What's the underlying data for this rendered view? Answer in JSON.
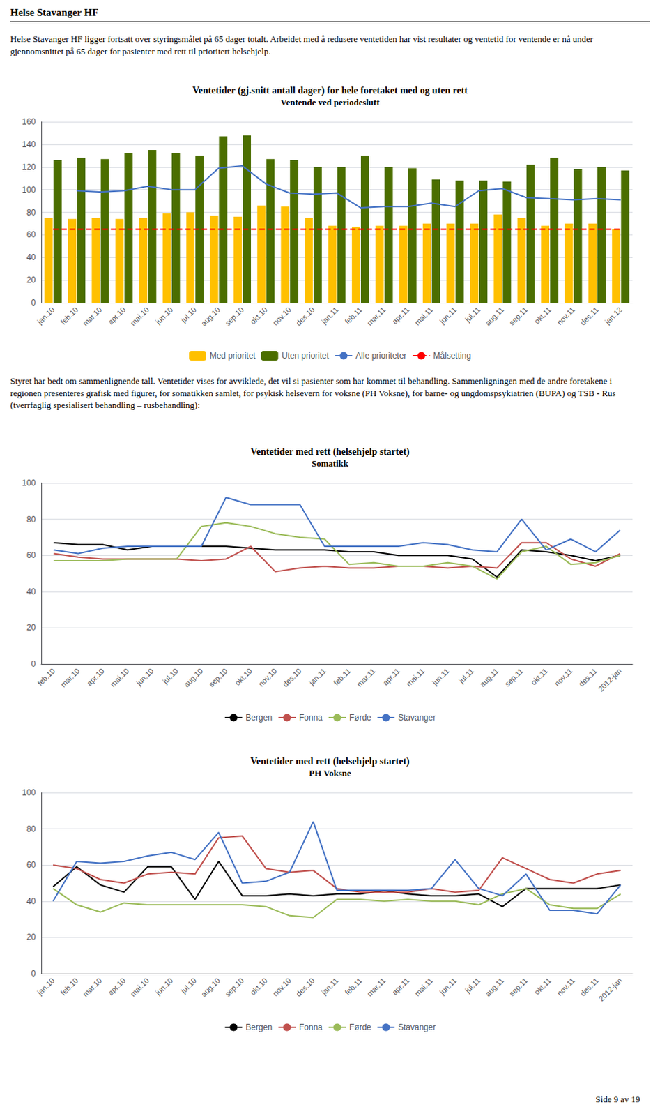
{
  "title": "Helse Stavanger HF",
  "annotations": [
    "Helse Stavanger HF ligger fortsatt over styringsmålet på 65 dager totalt. Arbeidet med å redusere ventetiden har vist resultater og ventetid for ventende er nå under gjennomsnittet på 65 dager for pasienter med rett til prioritert helsehjelp.",
    "Styret har bedt om sammenlignende tall.  Ventetider vises for avviklede, det vil si pasienter som har kommet til behandling. Sammenligningen med de andre foretakene i regionen presenteres grafisk med figurer, for somatikken samlet, for psykisk helsevern for voksne (PH Voksne), for barne- og ungdomspsykiatrien (BUPA) og TSB - Rus (tverrfaglig spesialisert behandling – rusbehandling):",
    "Side 9 av 19"
  ],
  "chart_data": [
    {
      "type": "bar",
      "title": "Ventetider (gj.snitt antall dager) for hele foretaket med og uten rett",
      "subtitle": "Ventende ved periodeslutt",
      "categories": [
        "jan.10",
        "feb.10",
        "mar.10",
        "apr.10",
        "mai.10",
        "jun.10",
        "jul.10",
        "aug.10",
        "sep.10",
        "okt.10",
        "nov.10",
        "des.10",
        "jan.11",
        "feb.11",
        "mar.11",
        "apr.11",
        "mai.11",
        "jun.11",
        "jul.11",
        "aug.11",
        "sep.11",
        "okt.11",
        "nov.11",
        "des.11",
        "jan.12"
      ],
      "series": [
        {
          "name": "Med prioritet",
          "type": "bar",
          "color": "#FFC000",
          "values": [
            75,
            74,
            75,
            74,
            75,
            79,
            80,
            77,
            76,
            86,
            85,
            75,
            68,
            67,
            68,
            68,
            70,
            70,
            70,
            78,
            75,
            68,
            70,
            70,
            65
          ]
        },
        {
          "name": "Uten prioritet",
          "type": "bar",
          "color": "#4B6E00",
          "values": [
            126,
            128,
            127,
            132,
            135,
            132,
            130,
            147,
            148,
            127,
            126,
            120,
            120,
            130,
            120,
            119,
            109,
            108,
            108,
            107,
            122,
            128,
            118,
            120,
            117
          ]
        },
        {
          "name": "Alle prioriteter",
          "type": "line",
          "color": "#4472C4",
          "values": [
            null,
            99,
            98,
            99,
            103,
            100,
            100,
            119,
            121,
            105,
            97,
            96,
            97,
            84,
            85,
            85,
            88,
            85,
            99,
            101,
            93,
            92,
            91,
            92,
            91
          ]
        },
        {
          "name": "Målsetting",
          "type": "line",
          "line_style": "dashed",
          "color": "#FF0000",
          "values": [
            65,
            65,
            65,
            65,
            65,
            65,
            65,
            65,
            65,
            65,
            65,
            65,
            65,
            65,
            65,
            65,
            65,
            65,
            65,
            65,
            65,
            65,
            65,
            65,
            65
          ]
        }
      ],
      "ylim": [
        0,
        160
      ],
      "yticks": [
        0,
        20,
        40,
        60,
        80,
        100,
        120,
        140,
        160
      ],
      "grid": true,
      "legend": "bottom"
    },
    {
      "type": "line",
      "title": "Ventetider med rett (helsehjelp startet)",
      "subtitle": "Somatikk",
      "categories": [
        "feb.10",
        "mar.10",
        "apr.10",
        "mai.10",
        "jun.10",
        "jul.10",
        "aug.10",
        "sep.10",
        "okt.10",
        "nov.10",
        "des.10",
        "jan.11",
        "feb.11",
        "mar.11",
        "apr.11",
        "mai.11",
        "jun.11",
        "jul.11",
        "aug.11",
        "sep.11",
        "okt.11",
        "nov.11",
        "des.11",
        "2012-jan"
      ],
      "series": [
        {
          "name": "Bergen",
          "color": "#000000",
          "values": [
            67,
            66,
            66,
            63,
            65,
            65,
            65,
            65,
            64,
            63,
            63,
            63,
            62,
            62,
            60,
            60,
            60,
            58,
            48,
            63,
            62,
            60,
            57,
            60
          ]
        },
        {
          "name": "Fonna",
          "color": "#C0504D",
          "values": [
            61,
            59,
            58,
            58,
            58,
            58,
            57,
            58,
            65,
            51,
            53,
            54,
            53,
            53,
            54,
            54,
            53,
            54,
            53,
            67,
            67,
            58,
            54,
            61
          ]
        },
        {
          "name": "Førde",
          "color": "#9BBB59",
          "values": [
            57,
            57,
            57,
            58,
            58,
            58,
            76,
            78,
            76,
            72,
            70,
            69,
            55,
            56,
            54,
            54,
            56,
            54,
            47,
            62,
            65,
            55,
            56,
            60
          ]
        },
        {
          "name": "Stavanger",
          "color": "#4472C4",
          "values": [
            63,
            61,
            64,
            65,
            65,
            65,
            65,
            92,
            88,
            88,
            88,
            65,
            65,
            65,
            65,
            67,
            66,
            63,
            62,
            80,
            63,
            69,
            62,
            74
          ]
        }
      ],
      "ylim": [
        0,
        100
      ],
      "yticks": [
        0,
        20,
        40,
        60,
        80,
        100
      ],
      "grid": true,
      "legend": "bottom"
    },
    {
      "type": "line",
      "title": "Ventetider med rett (helsehjelp startet)",
      "subtitle": "PH Voksne",
      "categories": [
        "jan.10",
        "feb.10",
        "mar.10",
        "apr.10",
        "mai.10",
        "jun.10",
        "jul.10",
        "aug.10",
        "sep.10",
        "okt.10",
        "nov.10",
        "des.10",
        "jan.11",
        "feb.11",
        "mar.11",
        "apr.11",
        "mai.11",
        "jun.11",
        "jul.11",
        "aug.11",
        "sep.11",
        "okt.11",
        "nov.11",
        "des.11",
        "2012-jan"
      ],
      "series": [
        {
          "name": "Bergen",
          "color": "#000000",
          "values": [
            48,
            59,
            49,
            45,
            59,
            59,
            41,
            62,
            43,
            43,
            44,
            43,
            44,
            44,
            46,
            44,
            43,
            43,
            44,
            37,
            47,
            47,
            47,
            47,
            49
          ]
        },
        {
          "name": "Fonna",
          "color": "#C0504D",
          "values": [
            60,
            58,
            52,
            50,
            55,
            56,
            55,
            75,
            76,
            58,
            56,
            57,
            47,
            45,
            45,
            45,
            47,
            45,
            46,
            64,
            58,
            52,
            50,
            55,
            57
          ]
        },
        {
          "name": "Førde",
          "color": "#9BBB59",
          "values": [
            47,
            38,
            34,
            39,
            38,
            38,
            38,
            38,
            38,
            37,
            32,
            31,
            41,
            41,
            40,
            41,
            40,
            40,
            38,
            44,
            47,
            38,
            36,
            36,
            44
          ]
        },
        {
          "name": "Stavanger",
          "color": "#4472C4",
          "values": [
            40,
            62,
            61,
            62,
            65,
            67,
            63,
            78,
            50,
            51,
            56,
            84,
            46,
            46,
            46,
            46,
            47,
            63,
            47,
            43,
            55,
            35,
            35,
            33,
            49
          ]
        }
      ],
      "ylim": [
        0,
        100
      ],
      "yticks": [
        0,
        20,
        40,
        60,
        80,
        100
      ],
      "grid": true,
      "legend": "bottom"
    }
  ]
}
